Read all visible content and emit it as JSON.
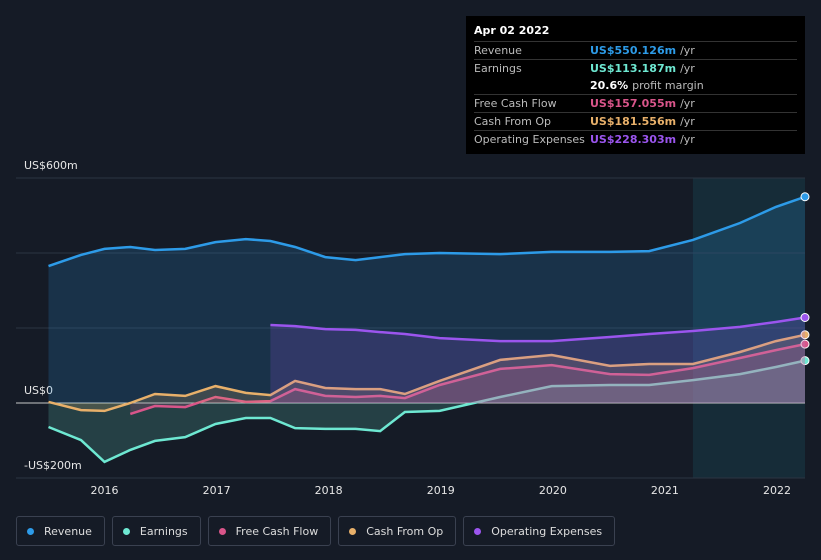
{
  "chart_data": {
    "type": "line",
    "x": [
      2015.5,
      2015.79,
      2016.0,
      2016.23,
      2016.45,
      2016.72,
      2016.99,
      2017.26,
      2017.48,
      2017.7,
      2017.97,
      2018.24,
      2018.46,
      2018.68,
      2018.99,
      2019.53,
      2019.99,
      2020.51,
      2020.86,
      2021.25,
      2021.67,
      2021.99,
      2022.25
    ],
    "xlim": [
      2015.21,
      2022.25
    ],
    "xticks": [
      2016,
      2017,
      2018,
      2019,
      2020,
      2021,
      2022
    ],
    "ylim": [
      -200,
      600
    ],
    "yticks": [
      {
        "value": 600,
        "label": "US$600m"
      },
      {
        "value": 400,
        "label": null
      },
      {
        "value": 200,
        "label": null
      },
      {
        "value": 0,
        "label": "US$0"
      },
      {
        "value": -200,
        "label": "-US$200m"
      }
    ],
    "grid": true,
    "highlight_from": 2021.25,
    "series": [
      {
        "name": "Revenue",
        "color": "#2d9be8",
        "values": [
          365,
          395,
          411,
          416,
          408,
          411,
          429,
          437,
          432,
          416,
          389,
          381,
          389,
          397,
          400,
          397,
          403,
          403,
          405,
          435,
          480,
          523,
          550
        ]
      },
      {
        "name": "Earnings",
        "color": "#6ee8d2",
        "values": [
          -64,
          -99,
          -157,
          -125,
          -101,
          -91,
          -56,
          -40,
          -40,
          -67,
          -69,
          -69,
          -75,
          -24,
          -21,
          16,
          45,
          48,
          48,
          61,
          77,
          96,
          113
        ]
      },
      {
        "name": "Free Cash Flow",
        "color": "#d9558a",
        "values": [
          null,
          null,
          null,
          -29,
          -8,
          -11,
          16,
          3,
          5,
          37,
          19,
          16,
          19,
          13,
          48,
          91,
          101,
          77,
          75,
          93,
          120,
          141,
          157
        ]
      },
      {
        "name": "Cash From Op",
        "color": "#e8b06a",
        "values": [
          3,
          -19,
          -21,
          0,
          24,
          19,
          45,
          27,
          21,
          59,
          40,
          37,
          37,
          24,
          59,
          115,
          128,
          99,
          104,
          104,
          136,
          165,
          182
        ]
      },
      {
        "name": "Operating Expenses",
        "color": "#9b55ee",
        "values": [
          null,
          null,
          null,
          null,
          null,
          null,
          null,
          null,
          208,
          205,
          197,
          195,
          189,
          184,
          173,
          165,
          165,
          176,
          184,
          192,
          203,
          216,
          228
        ]
      }
    ],
    "tooltip": {
      "date": "Apr 02 2022",
      "rows": [
        {
          "label": "Revenue",
          "value": "US$550.126m",
          "unit": "/yr"
        },
        {
          "label": "Earnings",
          "value": "US$113.187m",
          "unit": "/yr"
        },
        {
          "label": null,
          "value": "20.6%",
          "unit": "profit margin"
        },
        {
          "label": "Free Cash Flow",
          "value": "US$157.055m",
          "unit": "/yr"
        },
        {
          "label": "Cash From Op",
          "value": "US$181.556m",
          "unit": "/yr"
        },
        {
          "label": "Operating Expenses",
          "value": "US$228.303m",
          "unit": "/yr"
        }
      ]
    }
  }
}
